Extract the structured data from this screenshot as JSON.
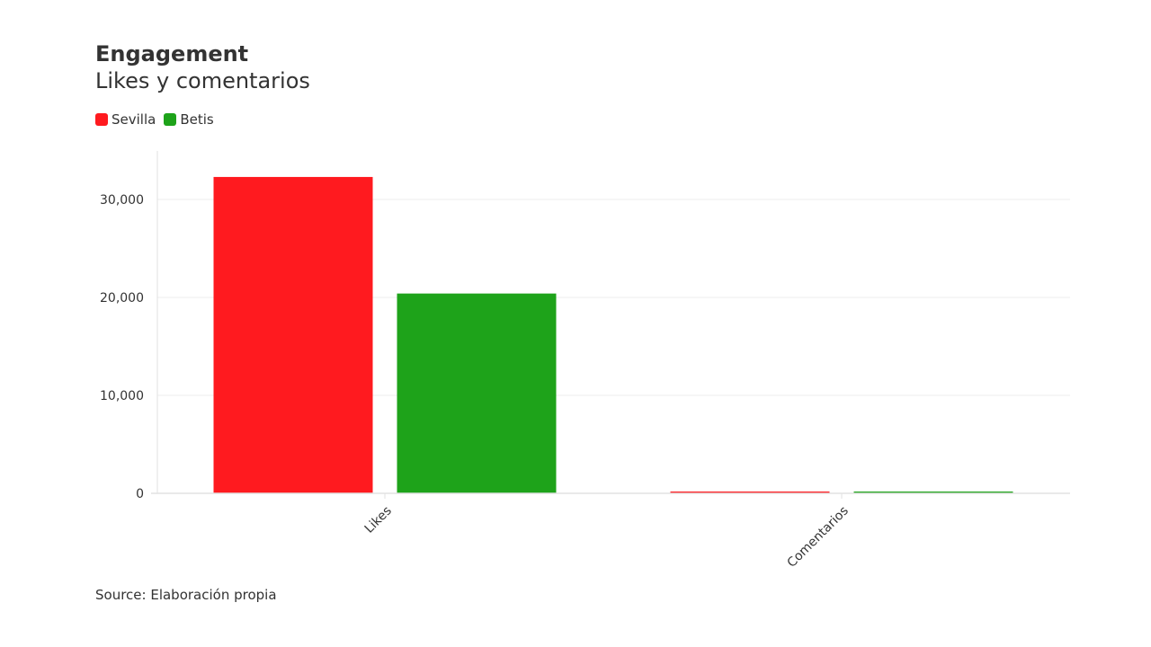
{
  "header": {
    "title": "Engagement",
    "subtitle": "Likes y comentarios"
  },
  "footer": {
    "source": "Source: Elaboración propia"
  },
  "colors": {
    "sevilla": "#ff1a1f",
    "betis": "#1ea31a",
    "grid": "#ececec",
    "axis": "#e2e2e2"
  },
  "chart_data": {
    "type": "bar",
    "title": "Engagement",
    "subtitle": "Likes y comentarios",
    "categories": [
      "Likes",
      "Comentarios"
    ],
    "series": [
      {
        "name": "Sevilla",
        "values": [
          32300,
          120
        ]
      },
      {
        "name": "Betis",
        "values": [
          20400,
          180
        ]
      }
    ],
    "ylim": [
      0,
      35000
    ],
    "yticks": [
      0,
      10000,
      20000,
      30000
    ],
    "ytick_labels": [
      "0",
      "10,000",
      "20,000",
      "30,000"
    ],
    "xlabel": "",
    "ylabel": "",
    "grid": true,
    "legend": "top-left",
    "source": "Source: Elaboración propia"
  }
}
